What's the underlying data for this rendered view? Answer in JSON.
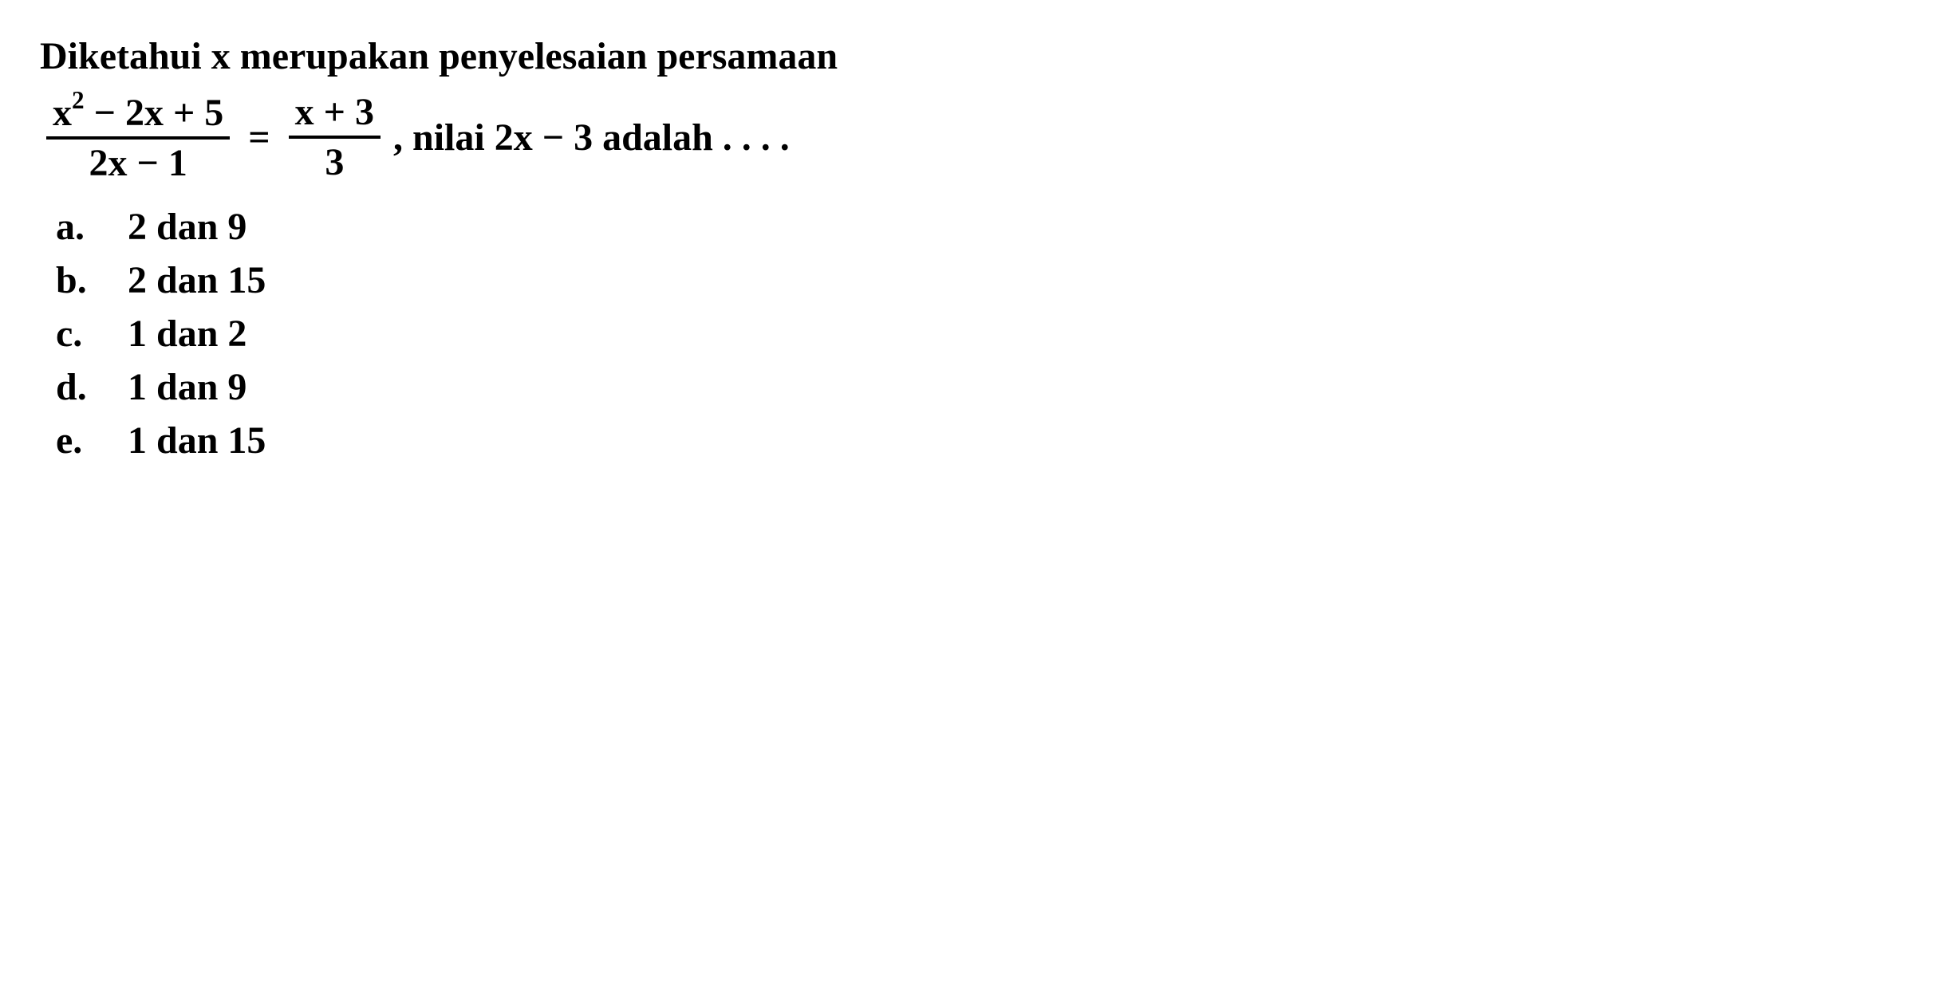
{
  "question": {
    "line1": "Diketahui x merupakan penyelesaian persamaan",
    "equation": {
      "fraction1": {
        "numerator_prefix": "x",
        "numerator_exponent": "2",
        "numerator_suffix": " − 2x + 5",
        "denominator": "2x − 1"
      },
      "equals": "=",
      "fraction2": {
        "numerator": "x + 3",
        "denominator": "3"
      },
      "trailing": ", nilai 2x − 3 adalah . . . ."
    }
  },
  "options": [
    {
      "letter": "a.",
      "text": "2 dan 9"
    },
    {
      "letter": "b.",
      "text": "2 dan 15"
    },
    {
      "letter": "c.",
      "text": "1 dan 2"
    },
    {
      "letter": "d.",
      "text": "1 dan 9"
    },
    {
      "letter": "e.",
      "text": "1 dan 15"
    }
  ],
  "style": {
    "text_color": "#000000",
    "background_color": "#ffffff",
    "font_size_main": 48,
    "font_weight": "bold",
    "font_family": "Times New Roman"
  }
}
